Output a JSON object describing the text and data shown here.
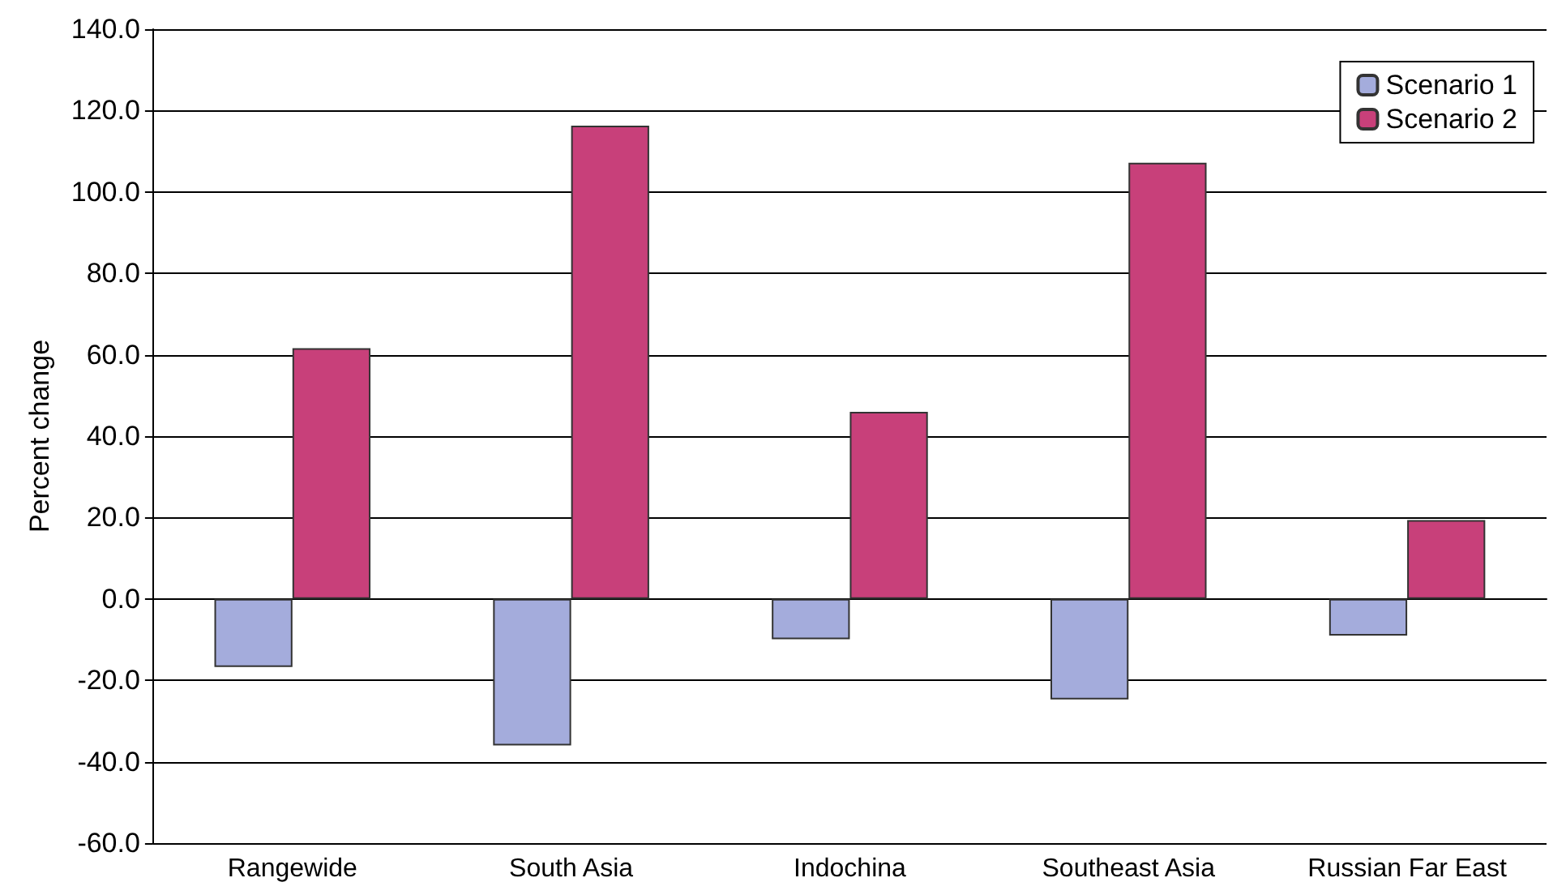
{
  "chart_data": {
    "type": "bar",
    "ylabel": "Percent change",
    "categories": [
      "Rangewide",
      "South Asia",
      "Indochina",
      "Southeast Asia",
      "Russian Far East"
    ],
    "series": [
      {
        "name": "Scenario 1",
        "color": "#a4acdc",
        "values": [
          -16.7,
          -36.0,
          -9.9,
          -24.7,
          -9.0
        ]
      },
      {
        "name": "Scenario 2",
        "color": "#c8407a",
        "values": [
          61.6,
          116.3,
          46.0,
          107.2,
          19.4
        ]
      }
    ],
    "ylim": [
      -60,
      140
    ],
    "yticks": [
      {
        "value": -60,
        "label": "-60.0"
      },
      {
        "value": -40,
        "label": "-40.0"
      },
      {
        "value": -20,
        "label": "-20.0"
      },
      {
        "value": 0,
        "label": "0.0"
      },
      {
        "value": 20,
        "label": "20.0"
      },
      {
        "value": 40,
        "label": "40.0"
      },
      {
        "value": 60,
        "label": "60.0"
      },
      {
        "value": 80,
        "label": "80.0"
      },
      {
        "value": 100,
        "label": "100.0"
      },
      {
        "value": 120,
        "label": "120.0"
      },
      {
        "value": 140,
        "label": "140.0"
      }
    ],
    "grid": "y",
    "legend": "top right"
  }
}
